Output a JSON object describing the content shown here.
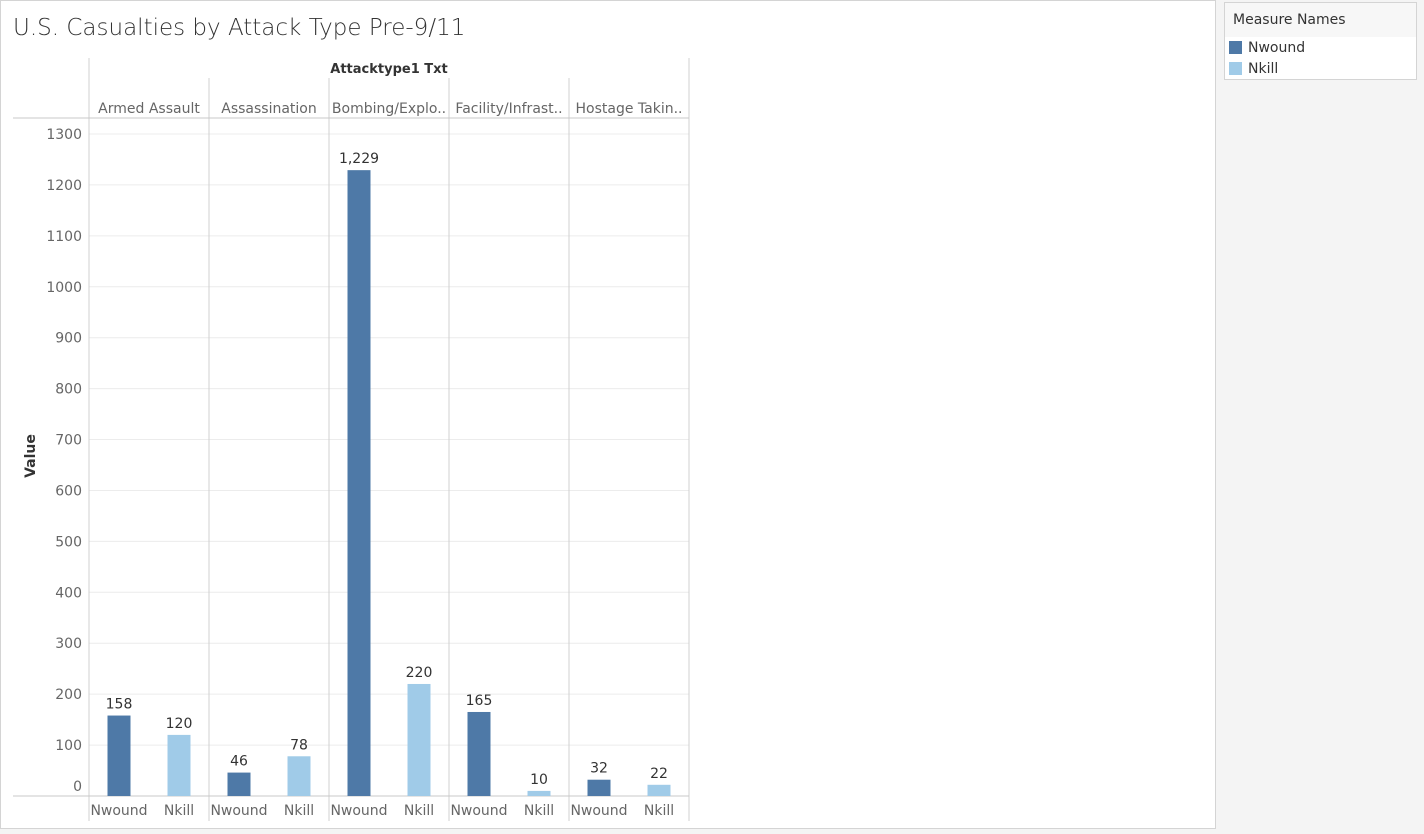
{
  "title": "U.S. Casualties by Attack Type Pre-9/11",
  "legend": {
    "title": "Measure Names",
    "items": [
      {
        "label": "Nwound",
        "color": "#4e79a7"
      },
      {
        "label": "Nkill",
        "color": "#a0cbe8"
      }
    ]
  },
  "chart_data": {
    "type": "bar",
    "column_header": "Attacktype1 Txt",
    "ylabel": "Value",
    "ylim": [
      0,
      1300
    ],
    "yticks": [
      0,
      100,
      200,
      300,
      400,
      500,
      600,
      700,
      800,
      900,
      1000,
      1100,
      1200,
      1300
    ],
    "grid": true,
    "legend_position": "top-right",
    "groups": [
      {
        "label": "Armed Assault",
        "bars": [
          {
            "measure": "Nwound",
            "value": 158,
            "label": "158"
          },
          {
            "measure": "Nkill",
            "value": 120,
            "label": "120"
          }
        ]
      },
      {
        "label": "Assassination",
        "bars": [
          {
            "measure": "Nwound",
            "value": 46,
            "label": "46"
          },
          {
            "measure": "Nkill",
            "value": 78,
            "label": "78"
          }
        ]
      },
      {
        "label": "Bombing/Explo..",
        "bars": [
          {
            "measure": "Nwound",
            "value": 1229,
            "label": "1,229"
          },
          {
            "measure": "Nkill",
            "value": 220,
            "label": "220"
          }
        ]
      },
      {
        "label": "Facility/Infrast..",
        "bars": [
          {
            "measure": "Nwound",
            "value": 165,
            "label": "165"
          },
          {
            "measure": "Nkill",
            "value": 10,
            "label": "10"
          }
        ]
      },
      {
        "label": "Hostage Takin..",
        "bars": [
          {
            "measure": "Nwound",
            "value": 32,
            "label": "32"
          },
          {
            "measure": "Nkill",
            "value": 22,
            "label": "22"
          }
        ]
      }
    ]
  }
}
